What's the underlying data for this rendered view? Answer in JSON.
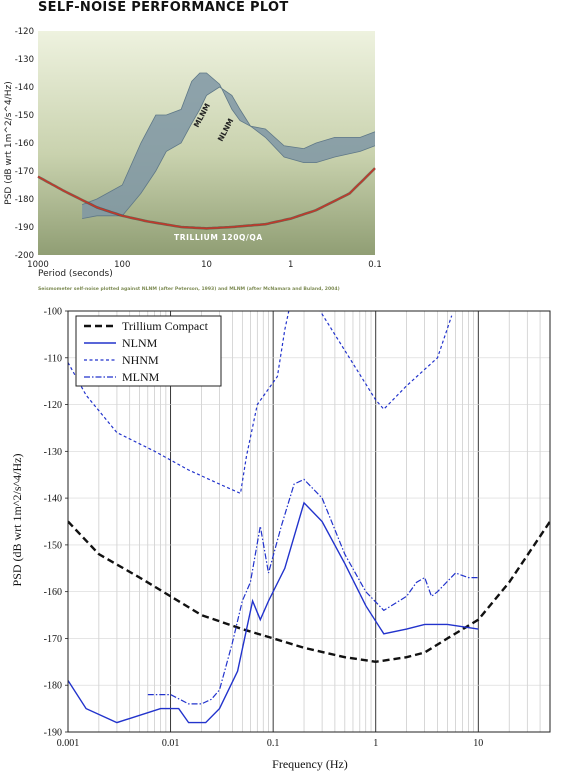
{
  "page_title": "SELF-NOISE PERFORMANCE PLOT",
  "colors": {
    "panel_top": "#e9eed9",
    "panel_bottom": "#8f9d73",
    "noise_band": "#7f97a5",
    "trillium_curve": "#c0392b",
    "black_dash": "#111111",
    "blue": "#2233cc"
  },
  "chart_data": [
    {
      "type": "area",
      "title": "SELF-NOISE PERFORMANCE PLOT",
      "xlabel": "Period (seconds)",
      "ylabel": "PSD (dB wrt 1m^2/s^4/Hz)",
      "caption": "Seismometer self-noise plotted against NLNM (after Peterson, 1993) and MLNM (after McNamara and Buland, 2004)",
      "x_scale": "log, reversed",
      "xlim": [
        1000,
        0.1
      ],
      "ylim": [
        -200,
        -120
      ],
      "x_ticks": [
        "1000",
        "100",
        "10",
        "1",
        "0.1"
      ],
      "y_ticks": [
        "-120",
        "-130",
        "-140",
        "-150",
        "-160",
        "-170",
        "-180",
        "-190",
        "-200"
      ],
      "grid": false,
      "annotations": [
        "MLNM",
        "NLNM",
        "TRILLIUM 120Q/QA"
      ],
      "series": [
        {
          "name": "MLNM",
          "x": [
            300,
            200,
            100,
            60,
            40,
            30,
            20,
            15,
            12,
            10,
            7,
            5,
            4,
            3,
            2,
            1.2,
            0.7,
            0.5,
            0.3,
            0.15,
            0.1
          ],
          "y": [
            -182,
            -180,
            -175,
            -160,
            -150,
            -150,
            -148,
            -138,
            -135,
            -135,
            -139,
            -148,
            -152,
            -154,
            -155,
            -161,
            -162,
            -160,
            -158,
            -158,
            -156
          ]
        },
        {
          "name": "NLNM",
          "x": [
            300,
            200,
            100,
            60,
            40,
            30,
            20,
            15,
            12,
            10,
            7,
            5,
            4,
            3,
            2,
            1.2,
            0.7,
            0.5,
            0.3,
            0.15,
            0.1
          ],
          "y": [
            -187,
            -186,
            -186,
            -178,
            -170,
            -163,
            -160,
            -153,
            -148,
            -143,
            -140,
            -143,
            -148,
            -154,
            -158,
            -165,
            -167,
            -167,
            -165,
            -163,
            -161
          ]
        },
        {
          "name": "TRILLIUM 120Q/QA",
          "x": [
            1000,
            500,
            200,
            100,
            50,
            20,
            10,
            5,
            2,
            1,
            0.5,
            0.2,
            0.1
          ],
          "y": [
            -172,
            -177,
            -183,
            -186,
            -188,
            -190,
            -190.5,
            -190,
            -189,
            -187,
            -184,
            -178,
            -169
          ]
        }
      ]
    },
    {
      "type": "line",
      "xlabel": "Frequency (Hz)",
      "ylabel": "PSD (dB wrt 1m^2/s^4/Hz)",
      "x_scale": "log",
      "xlim": [
        0.001,
        50
      ],
      "ylim": [
        -190,
        -100
      ],
      "x_ticks": [
        "0.001",
        "0.01",
        "0.1",
        "1",
        "10"
      ],
      "y_ticks": [
        "-100",
        "-110",
        "-120",
        "-130",
        "-140",
        "-150",
        "-160",
        "-170",
        "-180",
        "-190"
      ],
      "grid": true,
      "legend_position": "top-left",
      "series": [
        {
          "name": "Trillium Compact",
          "style": "dashed",
          "x": [
            0.001,
            0.002,
            0.005,
            0.01,
            0.02,
            0.05,
            0.1,
            0.2,
            0.5,
            1,
            2,
            3,
            5,
            10,
            20,
            50
          ],
          "y": [
            -145,
            -152,
            -157,
            -161,
            -165,
            -168,
            -170,
            -172,
            -174,
            -175,
            -174,
            -173,
            -170,
            -166,
            -158,
            -145
          ]
        },
        {
          "name": "NLNM",
          "style": "solid",
          "x": [
            0.001,
            0.0015,
            0.003,
            0.008,
            0.012,
            0.015,
            0.022,
            0.03,
            0.045,
            0.063,
            0.075,
            0.09,
            0.13,
            0.2,
            0.3,
            0.5,
            0.8,
            1.2,
            2,
            3,
            5,
            10
          ],
          "y": [
            -179,
            -185,
            -188,
            -185,
            -185,
            -188,
            -188,
            -185,
            -177,
            -162,
            -166,
            -162,
            -155,
            -141,
            -145,
            -154,
            -163,
            -169,
            -168,
            -167,
            -167,
            -168
          ]
        },
        {
          "name": "NHNM",
          "style": "dotted",
          "x": [
            0.001,
            0.0015,
            0.003,
            0.007,
            0.015,
            0.03,
            0.048,
            0.055,
            0.07,
            0.11,
            0.13,
            0.17,
            1,
            1.2,
            2,
            4,
            5.5
          ],
          "y": [
            -111,
            -118,
            -126,
            -130,
            -134,
            -137,
            -139,
            -131,
            -120,
            -114,
            -104,
            -92,
            -119,
            -121,
            -116,
            -110,
            -101
          ]
        },
        {
          "name": "MLNM",
          "style": "dash-dot",
          "x": [
            0.006,
            0.01,
            0.015,
            0.02,
            0.025,
            0.03,
            0.04,
            0.05,
            0.06,
            0.075,
            0.09,
            0.12,
            0.16,
            0.2,
            0.3,
            0.5,
            0.8,
            1.2,
            2,
            2.5,
            3,
            3.5,
            4,
            6,
            8,
            10
          ],
          "y": [
            -182,
            -182,
            -184,
            -184,
            -183,
            -181,
            -171,
            -162,
            -158,
            -146,
            -156,
            -146,
            -137,
            -136,
            -140,
            -152,
            -160,
            -164,
            -161,
            -158,
            -157,
            -161,
            -160,
            -156,
            -157,
            -157
          ]
        }
      ]
    }
  ]
}
